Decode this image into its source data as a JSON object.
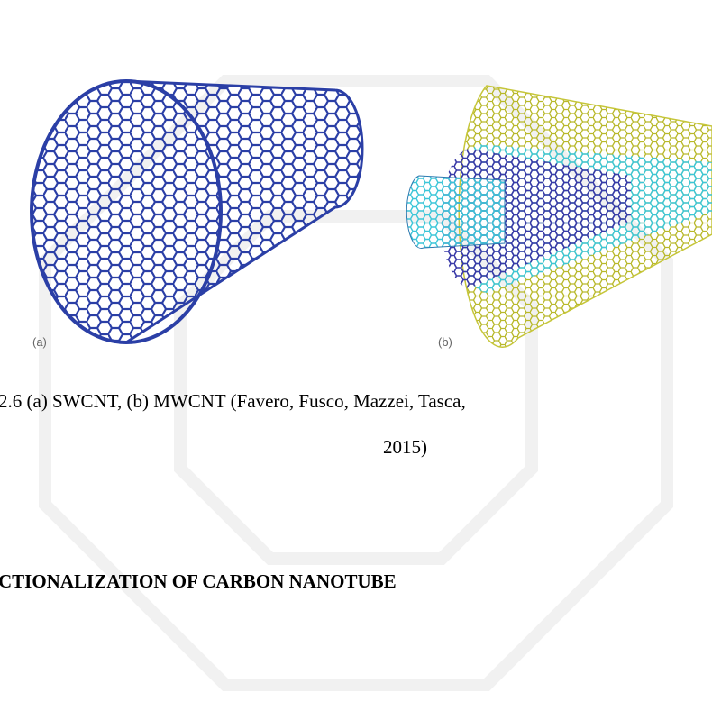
{
  "figure": {
    "panels": [
      {
        "label": "(a)"
      },
      {
        "label": "(b)"
      }
    ],
    "caption": [
      "2.6 (a) SWCNT, (b) MWCNT (Favero, Fusco, Mazzei, Tasca,",
      "2015)"
    ]
  },
  "heading": "CTIONALIZATION OF CARBON NANOTUBE"
}
